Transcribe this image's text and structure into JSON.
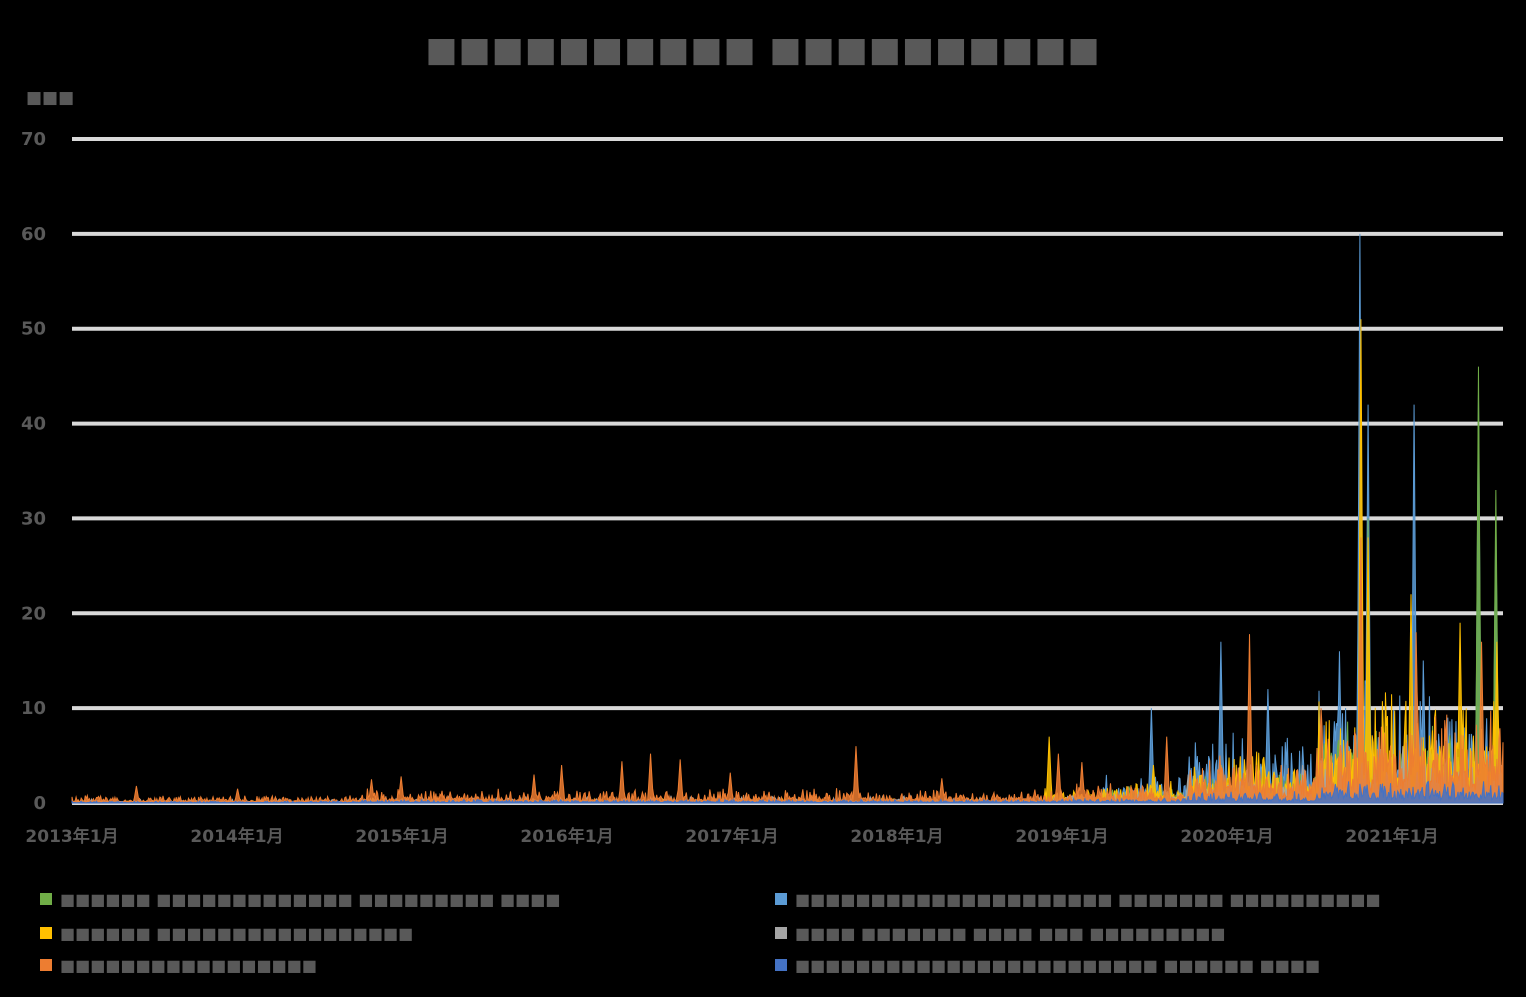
{
  "chart_data": {
    "type": "area",
    "title": "■■■■■■■■■■ ■■■■■■■■■■",
    "unit_label": "■■■",
    "ylim": [
      0,
      70
    ],
    "y_ticks": [
      "0",
      "10",
      "20",
      "30",
      "40",
      "50",
      "60",
      "70"
    ],
    "x_ticks": [
      "2013年1月",
      "2014年1月",
      "2015年1月",
      "2016年1月",
      "2017年1月",
      "2018年1月",
      "2019年1月",
      "2020年1月",
      "2021年1月"
    ],
    "grid": true,
    "legend_position": "bottom",
    "colors": {
      "background": "#000000",
      "grid": "#d9d9d9",
      "text": "#595959",
      "green": "#70ad47",
      "lightblue": "#5b9bd5",
      "yellow": "#ffc000",
      "gray": "#a5a5a5",
      "orange": "#ed7d31",
      "blue": "#4472c4"
    },
    "series": [
      {
        "name": "■■■■■■ ■■■■■■■■■■■■■ ■■■■■■■■■ ■■■■",
        "color": "#70ad47",
        "peaks": [
          {
            "x": 0.906,
            "y": 30
          },
          {
            "x": 0.983,
            "y": 46
          },
          {
            "x": 0.995,
            "y": 33
          }
        ]
      },
      {
        "name": "■■■■■■■■■■■■■■■■■■■■■ ■■■■■■■ ■■■■■■■■■■",
        "color": "#5b9bd5",
        "peaks": [
          {
            "x": 0.754,
            "y": 10
          },
          {
            "x": 0.803,
            "y": 17
          },
          {
            "x": 0.836,
            "y": 12
          },
          {
            "x": 0.886,
            "y": 16
          },
          {
            "x": 0.9,
            "y": 60
          },
          {
            "x": 0.906,
            "y": 42
          },
          {
            "x": 0.938,
            "y": 42
          },
          {
            "x": 0.983,
            "y": 43
          },
          {
            "x": 0.995,
            "y": 30
          }
        ]
      },
      {
        "name": "■■■■■■ ■■■■■■■■■■■■■■■■■",
        "color": "#ffc000",
        "peaks": [
          {
            "x": 0.683,
            "y": 7
          },
          {
            "x": 0.756,
            "y": 4
          },
          {
            "x": 0.901,
            "y": 51
          },
          {
            "x": 0.906,
            "y": 28
          },
          {
            "x": 0.936,
            "y": 22
          },
          {
            "x": 0.97,
            "y": 19
          },
          {
            "x": 0.996,
            "y": 17
          }
        ]
      },
      {
        "name": "■■■■ ■■■■■■■ ■■■■ ■■■ ■■■■■■■■■",
        "color": "#a5a5a5",
        "peaks": [
          {
            "x": 0.78,
            "y": 3
          },
          {
            "x": 0.86,
            "y": 4
          },
          {
            "x": 0.93,
            "y": 6
          }
        ]
      },
      {
        "name": "■■■■■■■■■■■■■■■■■",
        "color": "#ed7d31",
        "peaks": [
          {
            "x": 0.045,
            "y": 1.8
          },
          {
            "x": 0.116,
            "y": 1.5
          },
          {
            "x": 0.209,
            "y": 2.5
          },
          {
            "x": 0.23,
            "y": 2.8
          },
          {
            "x": 0.323,
            "y": 3
          },
          {
            "x": 0.342,
            "y": 4
          },
          {
            "x": 0.384,
            "y": 4.4
          },
          {
            "x": 0.404,
            "y": 5.2
          },
          {
            "x": 0.425,
            "y": 4.6
          },
          {
            "x": 0.46,
            "y": 3.2
          },
          {
            "x": 0.548,
            "y": 6
          },
          {
            "x": 0.608,
            "y": 2.6
          },
          {
            "x": 0.689,
            "y": 5.2
          },
          {
            "x": 0.706,
            "y": 4.3
          },
          {
            "x": 0.765,
            "y": 7
          },
          {
            "x": 0.802,
            "y": 5
          },
          {
            "x": 0.823,
            "y": 17.8
          },
          {
            "x": 0.873,
            "y": 10
          },
          {
            "x": 0.901,
            "y": 28
          },
          {
            "x": 0.939,
            "y": 18
          },
          {
            "x": 0.985,
            "y": 17
          }
        ]
      },
      {
        "name": "■■■■■■■■■■■■■■■■■■■■■■■■ ■■■■■■ ■■■■",
        "color": "#4472c4",
        "peaks": [
          {
            "x": 0.905,
            "y": 1.5
          },
          {
            "x": 0.96,
            "y": 1.2
          }
        ]
      }
    ]
  }
}
